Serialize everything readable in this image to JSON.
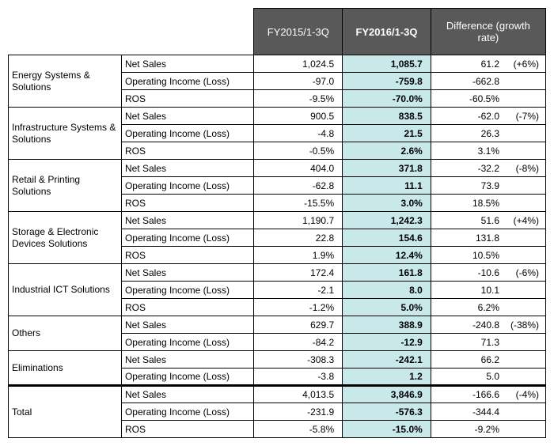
{
  "headers": {
    "col1": "FY2015/1-3Q",
    "col2": "FY2016/1-3Q",
    "col3": "Difference (growth rate)"
  },
  "metrics": {
    "ns": "Net Sales",
    "oi": "Operating Income (Loss)",
    "ros": "ROS"
  },
  "segments": [
    {
      "name": "Energy Systems & Solutions",
      "rows": [
        {
          "m": "ns",
          "a": "1,024.5",
          "b": "1,085.7",
          "d": "61.2",
          "p": "(+6%)"
        },
        {
          "m": "oi",
          "a": "-97.0",
          "b": "-759.8",
          "d": "-662.8",
          "p": ""
        },
        {
          "m": "ros",
          "a": "-9.5%",
          "b": "-70.0%",
          "d": "-60.5%",
          "p": ""
        }
      ]
    },
    {
      "name": "Infrastructure Systems & Solutions",
      "rows": [
        {
          "m": "ns",
          "a": "900.5",
          "b": "838.5",
          "d": "-62.0",
          "p": "(-7%)"
        },
        {
          "m": "oi",
          "a": "-4.8",
          "b": "21.5",
          "d": "26.3",
          "p": ""
        },
        {
          "m": "ros",
          "a": "-0.5%",
          "b": "2.6%",
          "d": "3.1%",
          "p": ""
        }
      ]
    },
    {
      "name": "Retail & Printing Solutions",
      "rows": [
        {
          "m": "ns",
          "a": "404.0",
          "b": "371.8",
          "d": "-32.2",
          "p": "(-8%)"
        },
        {
          "m": "oi",
          "a": "-62.8",
          "b": "11.1",
          "d": "73.9",
          "p": ""
        },
        {
          "m": "ros",
          "a": "-15.5%",
          "b": "3.0%",
          "d": "18.5%",
          "p": ""
        }
      ]
    },
    {
      "name": "Storage & Electronic Devices Solutions",
      "rows": [
        {
          "m": "ns",
          "a": "1,190.7",
          "b": "1,242.3",
          "d": "51.6",
          "p": "(+4%)"
        },
        {
          "m": "oi",
          "a": "22.8",
          "b": "154.6",
          "d": "131.8",
          "p": ""
        },
        {
          "m": "ros",
          "a": "1.9%",
          "b": "12.4%",
          "d": "10.5%",
          "p": ""
        }
      ]
    },
    {
      "name": "Industrial ICT Solutions",
      "rows": [
        {
          "m": "ns",
          "a": "172.4",
          "b": "161.8",
          "d": "-10.6",
          "p": "(-6%)"
        },
        {
          "m": "oi",
          "a": "-2.1",
          "b": "8.0",
          "d": "10.1",
          "p": ""
        },
        {
          "m": "ros",
          "a": "-1.2%",
          "b": "5.0%",
          "d": "6.2%",
          "p": ""
        }
      ]
    },
    {
      "name": "Others",
      "two": true,
      "rows": [
        {
          "m": "ns",
          "a": "629.7",
          "b": "388.9",
          "d": "-240.8",
          "p": "(-38%)"
        },
        {
          "m": "oi",
          "a": "-84.2",
          "b": "-12.9",
          "d": "71.3",
          "p": ""
        }
      ]
    },
    {
      "name": "Eliminations",
      "two": true,
      "rows": [
        {
          "m": "ns",
          "a": "-308.3",
          "b": "-242.1",
          "d": "66.2",
          "p": ""
        },
        {
          "m": "oi",
          "a": "-3.8",
          "b": "1.2",
          "d": "5.0",
          "p": ""
        }
      ]
    }
  ],
  "total": {
    "name": "Total",
    "rows": [
      {
        "m": "ns",
        "a": "4,013.5",
        "b": "3,846.9",
        "d": "-166.6",
        "p": "(-4%)"
      },
      {
        "m": "oi",
        "a": "-231.9",
        "b": "-576.3",
        "d": "-344.4",
        "p": ""
      },
      {
        "m": "ros",
        "a": "-5.8%",
        "b": "-15.0%",
        "d": "-9.2%",
        "p": ""
      }
    ]
  },
  "colors": {
    "header_bg": "#595959",
    "header_fg": "#ffffff",
    "highlight_bg": "#c9e8ea",
    "border": "#000000",
    "background": "#ffffff"
  },
  "fonts": {
    "header_size": 13,
    "cell_size": 12,
    "highlight_weight": "bold"
  }
}
